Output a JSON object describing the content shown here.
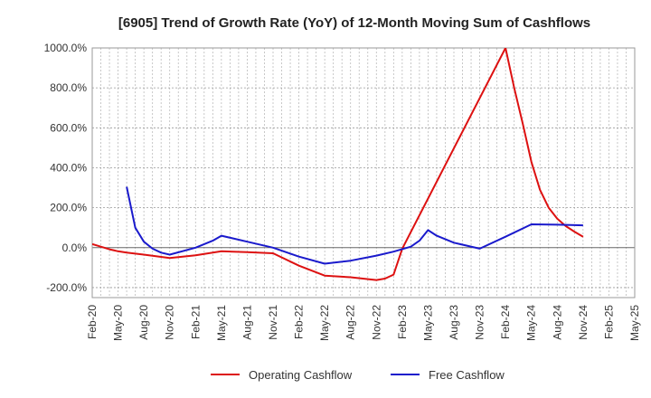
{
  "chart_data": {
    "type": "line",
    "title": "[6905]  Trend of Growth Rate (YoY) of 12-Month Moving Sum of Cashflows",
    "xlabel": "",
    "ylabel": "",
    "ylim": [
      -250,
      1000
    ],
    "yticks": [
      -200,
      0,
      200,
      400,
      600,
      800,
      1000
    ],
    "ytick_labels": [
      "-200.0%",
      "0.0%",
      "200.0%",
      "400.0%",
      "600.0%",
      "800.0%",
      "1000.0%"
    ],
    "x_range": [
      "2020-02",
      "2025-05"
    ],
    "xtick_labels": [
      "Feb-20",
      "May-20",
      "Aug-20",
      "Nov-20",
      "Feb-21",
      "May-21",
      "Aug-21",
      "Nov-21",
      "Feb-22",
      "May-22",
      "Aug-22",
      "Nov-22",
      "Feb-23",
      "May-23",
      "Aug-23",
      "Nov-23",
      "Feb-24",
      "May-24",
      "Aug-24",
      "Nov-24",
      "Feb-25",
      "May-25"
    ],
    "grid": true,
    "legend_position": "bottom",
    "series": [
      {
        "name": "Operating Cashflow",
        "color": "#dd1111",
        "points": [
          [
            "2020-02",
            18
          ],
          [
            "2020-03",
            5
          ],
          [
            "2020-04",
            -8
          ],
          [
            "2020-05",
            -18
          ],
          [
            "2020-06",
            -25
          ],
          [
            "2020-08",
            -35
          ],
          [
            "2020-11",
            -52
          ],
          [
            "2021-02",
            -38
          ],
          [
            "2021-05",
            -18
          ],
          [
            "2021-08",
            -22
          ],
          [
            "2021-11",
            -28
          ],
          [
            "2022-02",
            -90
          ],
          [
            "2022-05",
            -140
          ],
          [
            "2022-08",
            -148
          ],
          [
            "2022-11",
            -162
          ],
          [
            "2022-12",
            -155
          ],
          [
            "2023-01",
            -135
          ],
          [
            "2023-02",
            -5
          ],
          [
            "2024-02",
            1000
          ],
          [
            "2024-03",
            800
          ],
          [
            "2024-04",
            620
          ],
          [
            "2024-05",
            430
          ],
          [
            "2024-06",
            290
          ],
          [
            "2024-07",
            200
          ],
          [
            "2024-08",
            145
          ],
          [
            "2024-09",
            108
          ],
          [
            "2024-10",
            80
          ],
          [
            "2024-11",
            55
          ]
        ]
      },
      {
        "name": "Free Cashflow",
        "color": "#1a1acc",
        "points": [
          [
            "2020-06",
            305
          ],
          [
            "2020-07",
            100
          ],
          [
            "2020-08",
            30
          ],
          [
            "2020-09",
            -5
          ],
          [
            "2020-10",
            -25
          ],
          [
            "2020-11",
            -35
          ],
          [
            "2021-02",
            0
          ],
          [
            "2021-04",
            35
          ],
          [
            "2021-05",
            60
          ],
          [
            "2021-08",
            30
          ],
          [
            "2021-11",
            0
          ],
          [
            "2022-02",
            -45
          ],
          [
            "2022-05",
            -80
          ],
          [
            "2022-08",
            -65
          ],
          [
            "2022-11",
            -40
          ],
          [
            "2023-01",
            -20
          ],
          [
            "2023-03",
            5
          ],
          [
            "2023-04",
            35
          ],
          [
            "2023-05",
            88
          ],
          [
            "2023-06",
            60
          ],
          [
            "2023-08",
            25
          ],
          [
            "2023-11",
            -5
          ],
          [
            "2024-02",
            55
          ],
          [
            "2024-05",
            117
          ],
          [
            "2024-08",
            115
          ],
          [
            "2024-11",
            112
          ]
        ]
      }
    ]
  }
}
